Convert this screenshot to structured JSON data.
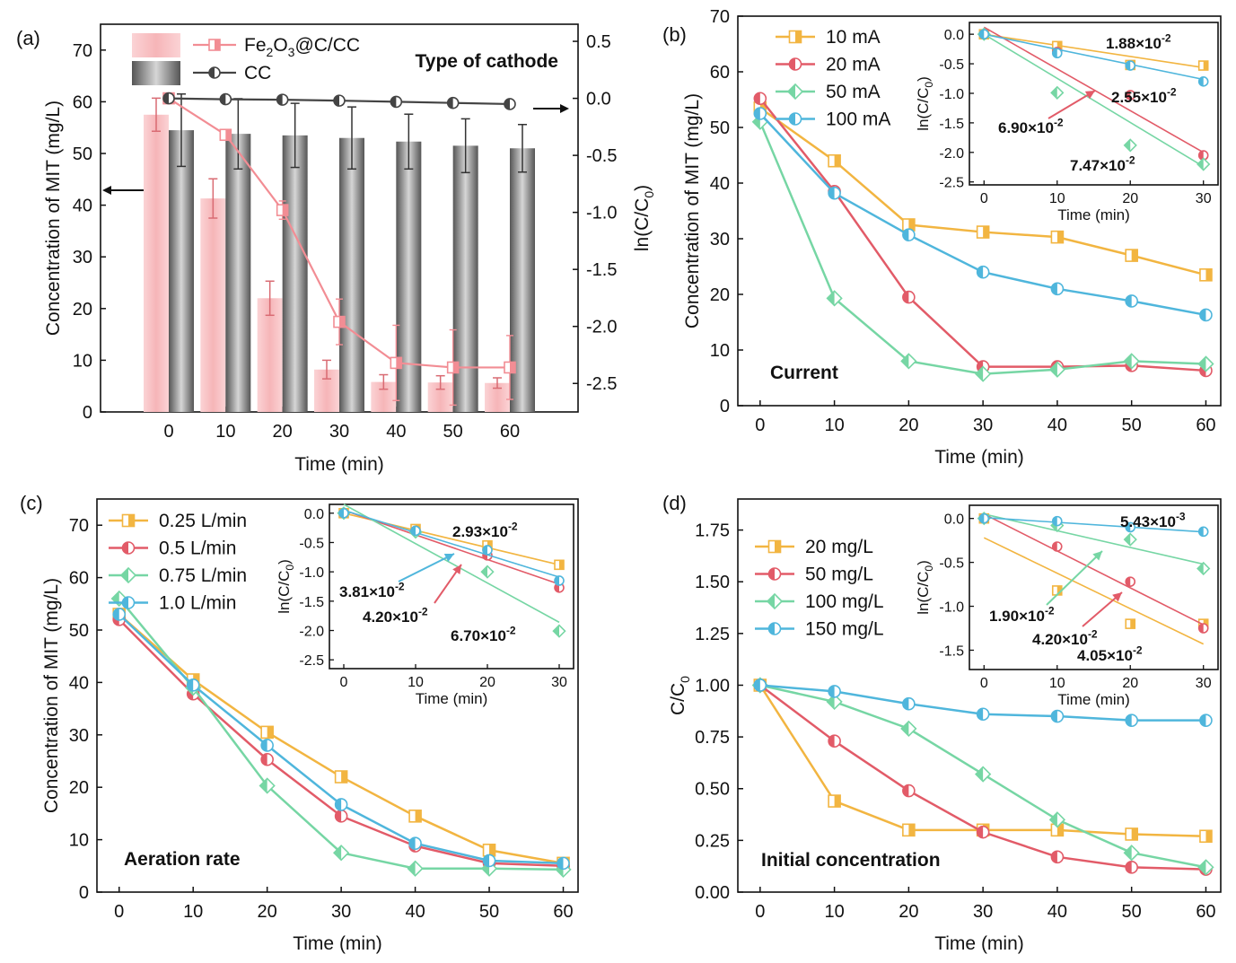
{
  "colors": {
    "orange": "#f2b541",
    "red": "#e25b68",
    "green": "#76d6a4",
    "blue": "#4fb6dc",
    "pink_bar": "#f6b5b8",
    "pink_line": "#f28d94",
    "gray_bar": "#8a8a8a",
    "gray_line": "#444444",
    "err": "#d96b73",
    "err_gray": "#333333"
  },
  "chart_data": [
    {
      "panel": "a",
      "panel_label": "(a)",
      "type": "bar",
      "title": "Type of cathode",
      "xlabel": "Time (min)",
      "ylabel": "Concentration of MIT (mg/L)",
      "y2label": "ln(C/C0)",
      "categories": [
        "0",
        "10",
        "20",
        "30",
        "40",
        "50",
        "60"
      ],
      "x": [
        0,
        10,
        20,
        30,
        40,
        50,
        60
      ],
      "xlim": [
        -12,
        72
      ],
      "ylim": [
        0,
        75
      ],
      "y2lim": [
        -2.75,
        0.65
      ],
      "yticks": [
        0,
        10,
        20,
        30,
        40,
        50,
        60,
        70
      ],
      "y2ticks": [
        -2.5,
        -2.0,
        -1.5,
        -1.0,
        -0.5,
        0.0,
        0.5
      ],
      "y2ticklabels": [
        "-2.5",
        "-2.0",
        "-1.5",
        "-1.0",
        "-0.5",
        "0.0",
        "0.5"
      ],
      "bars": [
        {
          "name": "Fe2O3@C/CC",
          "color": "pink_bar",
          "values": [
            57.5,
            41.3,
            22.0,
            8.2,
            5.8,
            5.7,
            5.6
          ],
          "errors": [
            3.2,
            3.8,
            3.3,
            1.8,
            1.4,
            1.3,
            1.0
          ]
        },
        {
          "name": "CC",
          "color": "gray_bar",
          "values": [
            54.5,
            53.8,
            53.5,
            53.0,
            52.3,
            51.5,
            51.0
          ],
          "errors": [
            7.0,
            6.8,
            6.2,
            6.0,
            5.3,
            5.2,
            4.6
          ]
        }
      ],
      "lines": [
        {
          "name": "Fe2O3@C/CC",
          "axis": "right",
          "color": "pink_line",
          "marker": "square",
          "values": [
            0.0,
            -0.32,
            -0.98,
            -1.96,
            -2.32,
            -2.36,
            -2.36
          ],
          "errors": [
            0,
            0.03,
            0.08,
            0.2,
            0.33,
            0.33,
            0.28
          ]
        },
        {
          "name": "CC",
          "axis": "right",
          "color": "gray_line",
          "marker": "circle",
          "values": [
            0.0,
            -0.008,
            -0.012,
            -0.02,
            -0.03,
            -0.04,
            -0.05
          ],
          "errors": [
            0,
            0,
            0,
            0,
            0,
            0,
            0
          ]
        }
      ],
      "legend": [
        {
          "label": "Fe₂O₃@C/CC",
          "color": "pink_line",
          "marker": "square",
          "patch": "pink_bar"
        },
        {
          "label": "CC",
          "color": "gray_line",
          "marker": "circle",
          "patch": "gray_bar"
        }
      ]
    },
    {
      "panel": "b",
      "panel_label": "(b)",
      "type": "line",
      "xlabel": "Time (min)",
      "ylabel": "Concentration of MIT (mg/L)",
      "annotation": "Current",
      "x": [
        0,
        10,
        20,
        30,
        40,
        50,
        60
      ],
      "xlim": [
        -3,
        62
      ],
      "ylim": [
        0,
        70
      ],
      "xticks": [
        0,
        10,
        20,
        30,
        40,
        50,
        60
      ],
      "yticks": [
        0,
        10,
        20,
        30,
        40,
        50,
        60,
        70
      ],
      "series": [
        {
          "name": "10 mA",
          "color": "orange",
          "marker": "square",
          "values": [
            53.5,
            44.0,
            32.5,
            31.2,
            30.3,
            27.0,
            23.5
          ]
        },
        {
          "name": "20 mA",
          "color": "red",
          "marker": "circle",
          "values": [
            55.2,
            38.5,
            19.5,
            7.0,
            7.0,
            7.2,
            6.3
          ]
        },
        {
          "name": "50 mA",
          "color": "green",
          "marker": "diamond",
          "values": [
            51.0,
            19.3,
            8.0,
            5.7,
            6.5,
            8.0,
            7.5
          ]
        },
        {
          "name": "100 mA",
          "color": "blue",
          "marker": "circle",
          "values": [
            52.5,
            38.2,
            30.7,
            24.0,
            21.0,
            18.8,
            16.3
          ]
        }
      ],
      "inset": {
        "xlabel": "Time (min)",
        "ylabel": "ln(C/C0)",
        "x": [
          0,
          10,
          20,
          30
        ],
        "xlim": [
          -2,
          32
        ],
        "ylim": [
          -2.55,
          0.2
        ],
        "xticks": [
          0,
          10,
          20,
          30
        ],
        "yticks": [
          -2.5,
          -2.0,
          -1.5,
          -1.0,
          -0.5,
          0.0
        ],
        "yticklabels": [
          "-2.5",
          "-2.0",
          "-1.5",
          "-1.0",
          "-0.5",
          "0.0"
        ],
        "series": [
          {
            "name": "10 mA",
            "color": "orange",
            "marker": "square",
            "values": [
              0,
              -0.2,
              -0.52,
              -0.53
            ],
            "fit": [
              0,
              -0.565
            ]
          },
          {
            "name": "20 mA",
            "color": "red",
            "marker": "circle",
            "values": [
              0,
              -0.3,
              -1.03,
              -2.05
            ],
            "fit": [
              0.12,
              -2.0
            ]
          },
          {
            "name": "50 mA",
            "color": "green",
            "marker": "diamond",
            "values": [
              0,
              -0.99,
              -1.88,
              -2.2
            ],
            "fit": [
              0,
              -2.24
            ]
          },
          {
            "name": "100 mA",
            "color": "blue",
            "marker": "circle",
            "values": [
              0,
              -0.32,
              -0.53,
              -0.8
            ],
            "fit": [
              0,
              -0.765
            ]
          }
        ],
        "rate_labels": [
          {
            "text": "1.88×10",
            "exp": "-2",
            "color": "orange"
          },
          {
            "text": "2.55×10",
            "exp": "-2",
            "color": "blue"
          },
          {
            "text": "6.90×10",
            "exp": "-2",
            "color": "red"
          },
          {
            "text": "7.47×10",
            "exp": "-2",
            "color": "green"
          }
        ]
      }
    },
    {
      "panel": "c",
      "panel_label": "(c)",
      "type": "line",
      "xlabel": "Time (min)",
      "ylabel": "Concentration of MIT (mg/L)",
      "annotation": "Aeration rate",
      "x": [
        0,
        10,
        20,
        30,
        40,
        50,
        60
      ],
      "xlim": [
        -3,
        62
      ],
      "ylim": [
        0,
        75
      ],
      "xticks": [
        0,
        10,
        20,
        30,
        40,
        50,
        60
      ],
      "yticks": [
        0,
        10,
        20,
        30,
        40,
        50,
        60,
        70
      ],
      "series": [
        {
          "name": "0.25 L/min",
          "color": "orange",
          "marker": "square",
          "values": [
            53.0,
            40.5,
            30.5,
            22.0,
            14.5,
            8.0,
            5.5
          ]
        },
        {
          "name": "0.5 L/min",
          "color": "red",
          "marker": "circle",
          "values": [
            52.0,
            37.8,
            25.3,
            14.5,
            8.8,
            5.5,
            5.0
          ]
        },
        {
          "name": "0.75 L/min",
          "color": "green",
          "marker": "diamond",
          "values": [
            56.0,
            39.0,
            20.3,
            7.5,
            4.5,
            4.5,
            4.3
          ]
        },
        {
          "name": "1.0 L/min",
          "color": "blue",
          "marker": "circle",
          "values": [
            53.0,
            39.5,
            28.0,
            16.7,
            9.3,
            6.0,
            5.5
          ]
        }
      ],
      "inset": {
        "xlabel": "Time (min)",
        "ylabel": "ln(C/C0)",
        "x": [
          0,
          10,
          20,
          30
        ],
        "xlim": [
          -2,
          32
        ],
        "ylim": [
          -2.65,
          0.15
        ],
        "xticks": [
          0,
          10,
          20,
          30
        ],
        "yticks": [
          -2.5,
          -2.0,
          -1.5,
          -1.0,
          -0.5,
          0.0
        ],
        "yticklabels": [
          "-2.5",
          "-2.0",
          "-1.5",
          "-1.0",
          "-0.5",
          "0.0"
        ],
        "series": [
          {
            "name": "0.25 L/min",
            "color": "orange",
            "marker": "square",
            "values": [
              0,
              -0.27,
              -0.55,
              -0.88
            ],
            "fit": [
              0,
              -0.88
            ]
          },
          {
            "name": "0.5 L/min",
            "color": "red",
            "marker": "circle",
            "values": [
              0,
              -0.3,
              -0.72,
              -1.27
            ],
            "fit": [
              0.05,
              -1.21
            ]
          },
          {
            "name": "0.75 L/min",
            "color": "green",
            "marker": "diamond",
            "values": [
              0,
              -0.32,
              -1.0,
              -2.01
            ],
            "fit": [
              0.15,
              -1.86
            ]
          },
          {
            "name": "1.0 L/min",
            "color": "blue",
            "marker": "circle",
            "values": [
              0,
              -0.3,
              -0.63,
              -1.15
            ],
            "fit": [
              0.05,
              -1.09
            ]
          }
        ],
        "rate_labels": [
          {
            "text": "2.93×10",
            "exp": "-2",
            "color": "orange"
          },
          {
            "text": "3.81×10",
            "exp": "-2",
            "color": "blue"
          },
          {
            "text": "4.20×10",
            "exp": "-2",
            "color": "red"
          },
          {
            "text": "6.70×10",
            "exp": "-2",
            "color": "green"
          }
        ]
      }
    },
    {
      "panel": "d",
      "panel_label": "(d)",
      "type": "line",
      "xlabel": "Time (min)",
      "ylabel": "C/C0",
      "annotation": "Initial concentration",
      "x": [
        0,
        10,
        20,
        30,
        40,
        50,
        60
      ],
      "xlim": [
        -3,
        62
      ],
      "ylim": [
        0,
        1.9
      ],
      "xticks": [
        0,
        10,
        20,
        30,
        40,
        50,
        60
      ],
      "yticks": [
        0,
        0.25,
        0.5,
        0.75,
        1.0,
        1.25,
        1.5,
        1.75
      ],
      "yticklabels": [
        "0.00",
        "0.25",
        "0.50",
        "0.75",
        "1.00",
        "1.25",
        "1.50",
        "1.75"
      ],
      "series": [
        {
          "name": "20 mg/L",
          "color": "orange",
          "marker": "square",
          "values": [
            1.0,
            0.44,
            0.3,
            0.3,
            0.3,
            0.28,
            0.27
          ]
        },
        {
          "name": "50 mg/L",
          "color": "red",
          "marker": "circle",
          "values": [
            1.0,
            0.73,
            0.49,
            0.29,
            0.17,
            0.12,
            0.11
          ]
        },
        {
          "name": "100 mg/L",
          "color": "green",
          "marker": "diamond",
          "values": [
            1.0,
            0.92,
            0.79,
            0.57,
            0.35,
            0.19,
            0.12
          ]
        },
        {
          "name": "150 mg/L",
          "color": "blue",
          "marker": "circle",
          "values": [
            1.0,
            0.97,
            0.91,
            0.86,
            0.85,
            0.83,
            0.83
          ]
        }
      ],
      "inset": {
        "xlabel": "Time (min)",
        "ylabel": "ln(C/C0)",
        "x": [
          0,
          10,
          20,
          30
        ],
        "xlim": [
          -2,
          32
        ],
        "ylim": [
          -1.72,
          0.15
        ],
        "xticks": [
          0,
          10,
          20,
          30
        ],
        "yticks": [
          -1.5,
          -1.0,
          -0.5,
          0.0
        ],
        "yticklabels": [
          "-1.5",
          "-1.0",
          "-0.5",
          "0.0"
        ],
        "series": [
          {
            "name": "20 mg/L",
            "color": "orange",
            "marker": "square",
            "values": [
              0,
              -0.82,
              -1.2,
              -1.2
            ],
            "fit": [
              -0.22,
              -1.43
            ]
          },
          {
            "name": "50 mg/L",
            "color": "red",
            "marker": "circle",
            "values": [
              0,
              -0.32,
              -0.72,
              -1.25
            ],
            "fit": [
              0.05,
              -1.21
            ]
          },
          {
            "name": "100 mg/L",
            "color": "green",
            "marker": "diamond",
            "values": [
              0,
              -0.08,
              -0.24,
              -0.57
            ],
            "fit": [
              0.05,
              -0.52
            ]
          },
          {
            "name": "150 mg/L",
            "color": "blue",
            "marker": "circle",
            "values": [
              0,
              -0.03,
              -0.1,
              -0.15
            ],
            "fit": [
              0.01,
              -0.153
            ]
          }
        ],
        "rate_labels": [
          {
            "text": "5.43×10",
            "exp": "-3",
            "color": "blue"
          },
          {
            "text": "1.90×10",
            "exp": "-2",
            "color": "green"
          },
          {
            "text": "4.20×10",
            "exp": "-2",
            "color": "red"
          },
          {
            "text": "4.05×10",
            "exp": "-2",
            "color": "orange"
          }
        ]
      }
    }
  ]
}
